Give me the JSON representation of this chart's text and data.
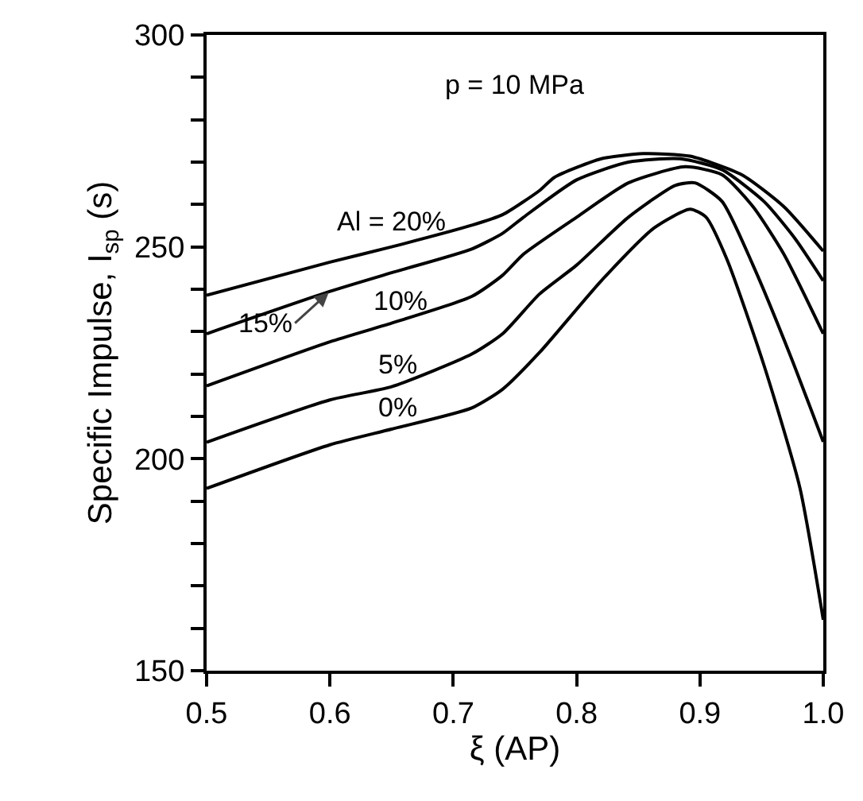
{
  "chart_data": {
    "type": "line",
    "xlabel": "ξ (AP)",
    "ylabel": "Specific Impulse, I$_{sp}$ (s)",
    "annotations": [
      "p = 10 MPa"
    ],
    "xlim": [
      0.5,
      1.0
    ],
    "xticks": [
      0.5,
      0.6,
      0.7,
      0.8,
      0.9,
      {
        "value": 1.0,
        "label": "1.0"
      }
    ],
    "ylim": [
      150,
      300
    ],
    "yticks": [
      150,
      {
        "value": 160,
        "label": null
      },
      {
        "value": 170,
        "label": null
      },
      {
        "value": 180,
        "label": null
      },
      {
        "value": 190,
        "label": null
      },
      200,
      {
        "value": 210,
        "label": null
      },
      {
        "value": 220,
        "label": null
      },
      {
        "value": 230,
        "label": null
      },
      {
        "value": 240,
        "label": null
      },
      250,
      {
        "value": 260,
        "label": null
      },
      {
        "value": 270,
        "label": null
      },
      {
        "value": 280,
        "label": null
      },
      {
        "value": 290,
        "label": null
      },
      300
    ],
    "grid": false,
    "legend": false,
    "marker": "none",
    "line_style": "solid",
    "series": [
      {
        "name": "Al = 20%",
        "color": "#000000",
        "x": [
          0.5,
          0.6,
          0.65,
          0.715,
          0.74,
          0.77,
          0.782,
          0.82,
          0.854,
          0.892,
          0.934,
          0.968,
          1.0
        ],
        "values": [
          238.6,
          246.4,
          250,
          255.1,
          257.6,
          263.3,
          266.4,
          270.8,
          272,
          271.4,
          267,
          259.5,
          249
        ]
      },
      {
        "name": "15%",
        "color": "#000000",
        "x": [
          0.5,
          0.6,
          0.65,
          0.715,
          0.74,
          0.757,
          0.8,
          0.842,
          0.884,
          0.918,
          0.952,
          0.977,
          1.0
        ],
        "values": [
          229.5,
          239.5,
          243.9,
          249.5,
          253.2,
          257,
          265.8,
          270,
          270.8,
          268.2,
          260.7,
          252,
          242
        ]
      },
      {
        "name": "10%",
        "color": "#000000",
        "x": [
          0.5,
          0.6,
          0.65,
          0.715,
          0.74,
          0.757,
          0.8,
          0.842,
          0.888,
          0.918,
          0.943,
          0.968,
          1.0
        ],
        "values": [
          217.2,
          227.6,
          232,
          238.3,
          243.3,
          248.3,
          257,
          265.1,
          268.9,
          267,
          259.5,
          248.3,
          229.5
        ]
      },
      {
        "name": "5%",
        "color": "#000000",
        "x": [
          0.5,
          0.6,
          0.65,
          0.715,
          0.74,
          0.77,
          0.8,
          0.842,
          0.88,
          0.896,
          0.918,
          0.943,
          0.973,
          1.0
        ],
        "values": [
          203.9,
          213.9,
          217,
          224.7,
          229.5,
          238.9,
          245.7,
          257,
          264.5,
          265.1,
          260.7,
          245.7,
          224.6,
          204
        ]
      },
      {
        "name": "0%",
        "color": "#000000",
        "x": [
          0.5,
          0.6,
          0.65,
          0.715,
          0.74,
          0.77,
          0.82,
          0.863,
          0.892,
          0.905,
          0.922,
          0.952,
          0.981,
          1.0
        ],
        "values": [
          193,
          203.3,
          207,
          212,
          216.4,
          225.1,
          242,
          254.5,
          258.9,
          257,
          247,
          222,
          193.2,
          162
        ]
      }
    ]
  }
}
